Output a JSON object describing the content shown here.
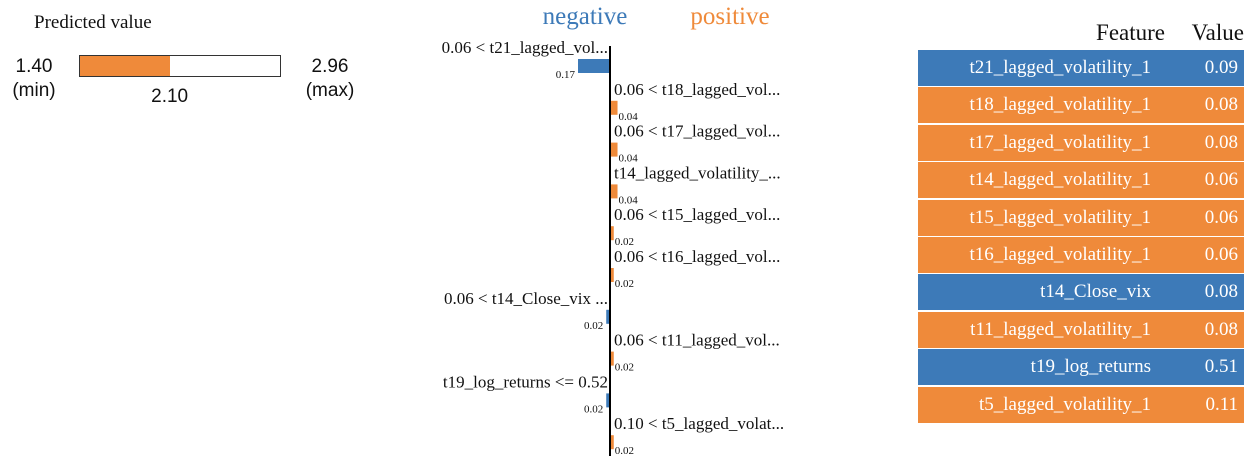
{
  "colors": {
    "negative": "#3d7ab8",
    "positive": "#ef8a3a",
    "axis": "#000000"
  },
  "prediction": {
    "title": "Predicted value",
    "min_value": "1.40",
    "min_caption": "(min)",
    "max_value": "2.96",
    "max_caption": "(max)",
    "predicted": "2.10",
    "min": 1.4,
    "max": 2.96,
    "value": 2.1
  },
  "chart_data": {
    "type": "bar",
    "legend": {
      "negative": "negative",
      "positive": "positive"
    },
    "max_abs": 0.17,
    "bars": [
      {
        "label": "0.06 < t21_lagged_vol...",
        "value": -0.17,
        "value_label": "0.17"
      },
      {
        "label": "0.06 < t18_lagged_vol...",
        "value": 0.04,
        "value_label": "0.04"
      },
      {
        "label": "0.06 < t17_lagged_vol...",
        "value": 0.04,
        "value_label": "0.04"
      },
      {
        "label": "t14_lagged_volatility_...",
        "value": 0.04,
        "value_label": "0.04"
      },
      {
        "label": "0.06 < t15_lagged_vol...",
        "value": 0.02,
        "value_label": "0.02"
      },
      {
        "label": "0.06 < t16_lagged_vol...",
        "value": 0.02,
        "value_label": "0.02"
      },
      {
        "label": "0.06 < t14_Close_vix ...",
        "value": -0.02,
        "value_label": "0.02"
      },
      {
        "label": "0.06 < t11_lagged_vol...",
        "value": 0.02,
        "value_label": "0.02"
      },
      {
        "label": "t19_log_returns <= 0.52",
        "value": -0.02,
        "value_label": "0.02"
      },
      {
        "label": "0.10 < t5_lagged_volat...",
        "value": 0.02,
        "value_label": "0.02"
      }
    ]
  },
  "table": {
    "header_feature": "Feature",
    "header_value": "Value",
    "rows": [
      {
        "feature": "t21_lagged_volatility_1",
        "value": "0.09",
        "sign": "negative"
      },
      {
        "feature": "t18_lagged_volatility_1",
        "value": "0.08",
        "sign": "positive"
      },
      {
        "feature": "t17_lagged_volatility_1",
        "value": "0.08",
        "sign": "positive"
      },
      {
        "feature": "t14_lagged_volatility_1",
        "value": "0.06",
        "sign": "positive"
      },
      {
        "feature": "t15_lagged_volatility_1",
        "value": "0.06",
        "sign": "positive"
      },
      {
        "feature": "t16_lagged_volatility_1",
        "value": "0.06",
        "sign": "positive"
      },
      {
        "feature": "t14_Close_vix",
        "value": "0.08",
        "sign": "negative"
      },
      {
        "feature": "t11_lagged_volatility_1",
        "value": "0.08",
        "sign": "positive"
      },
      {
        "feature": "t19_log_returns",
        "value": "0.51",
        "sign": "negative"
      },
      {
        "feature": "t5_lagged_volatility_1",
        "value": "0.11",
        "sign": "positive"
      }
    ]
  }
}
